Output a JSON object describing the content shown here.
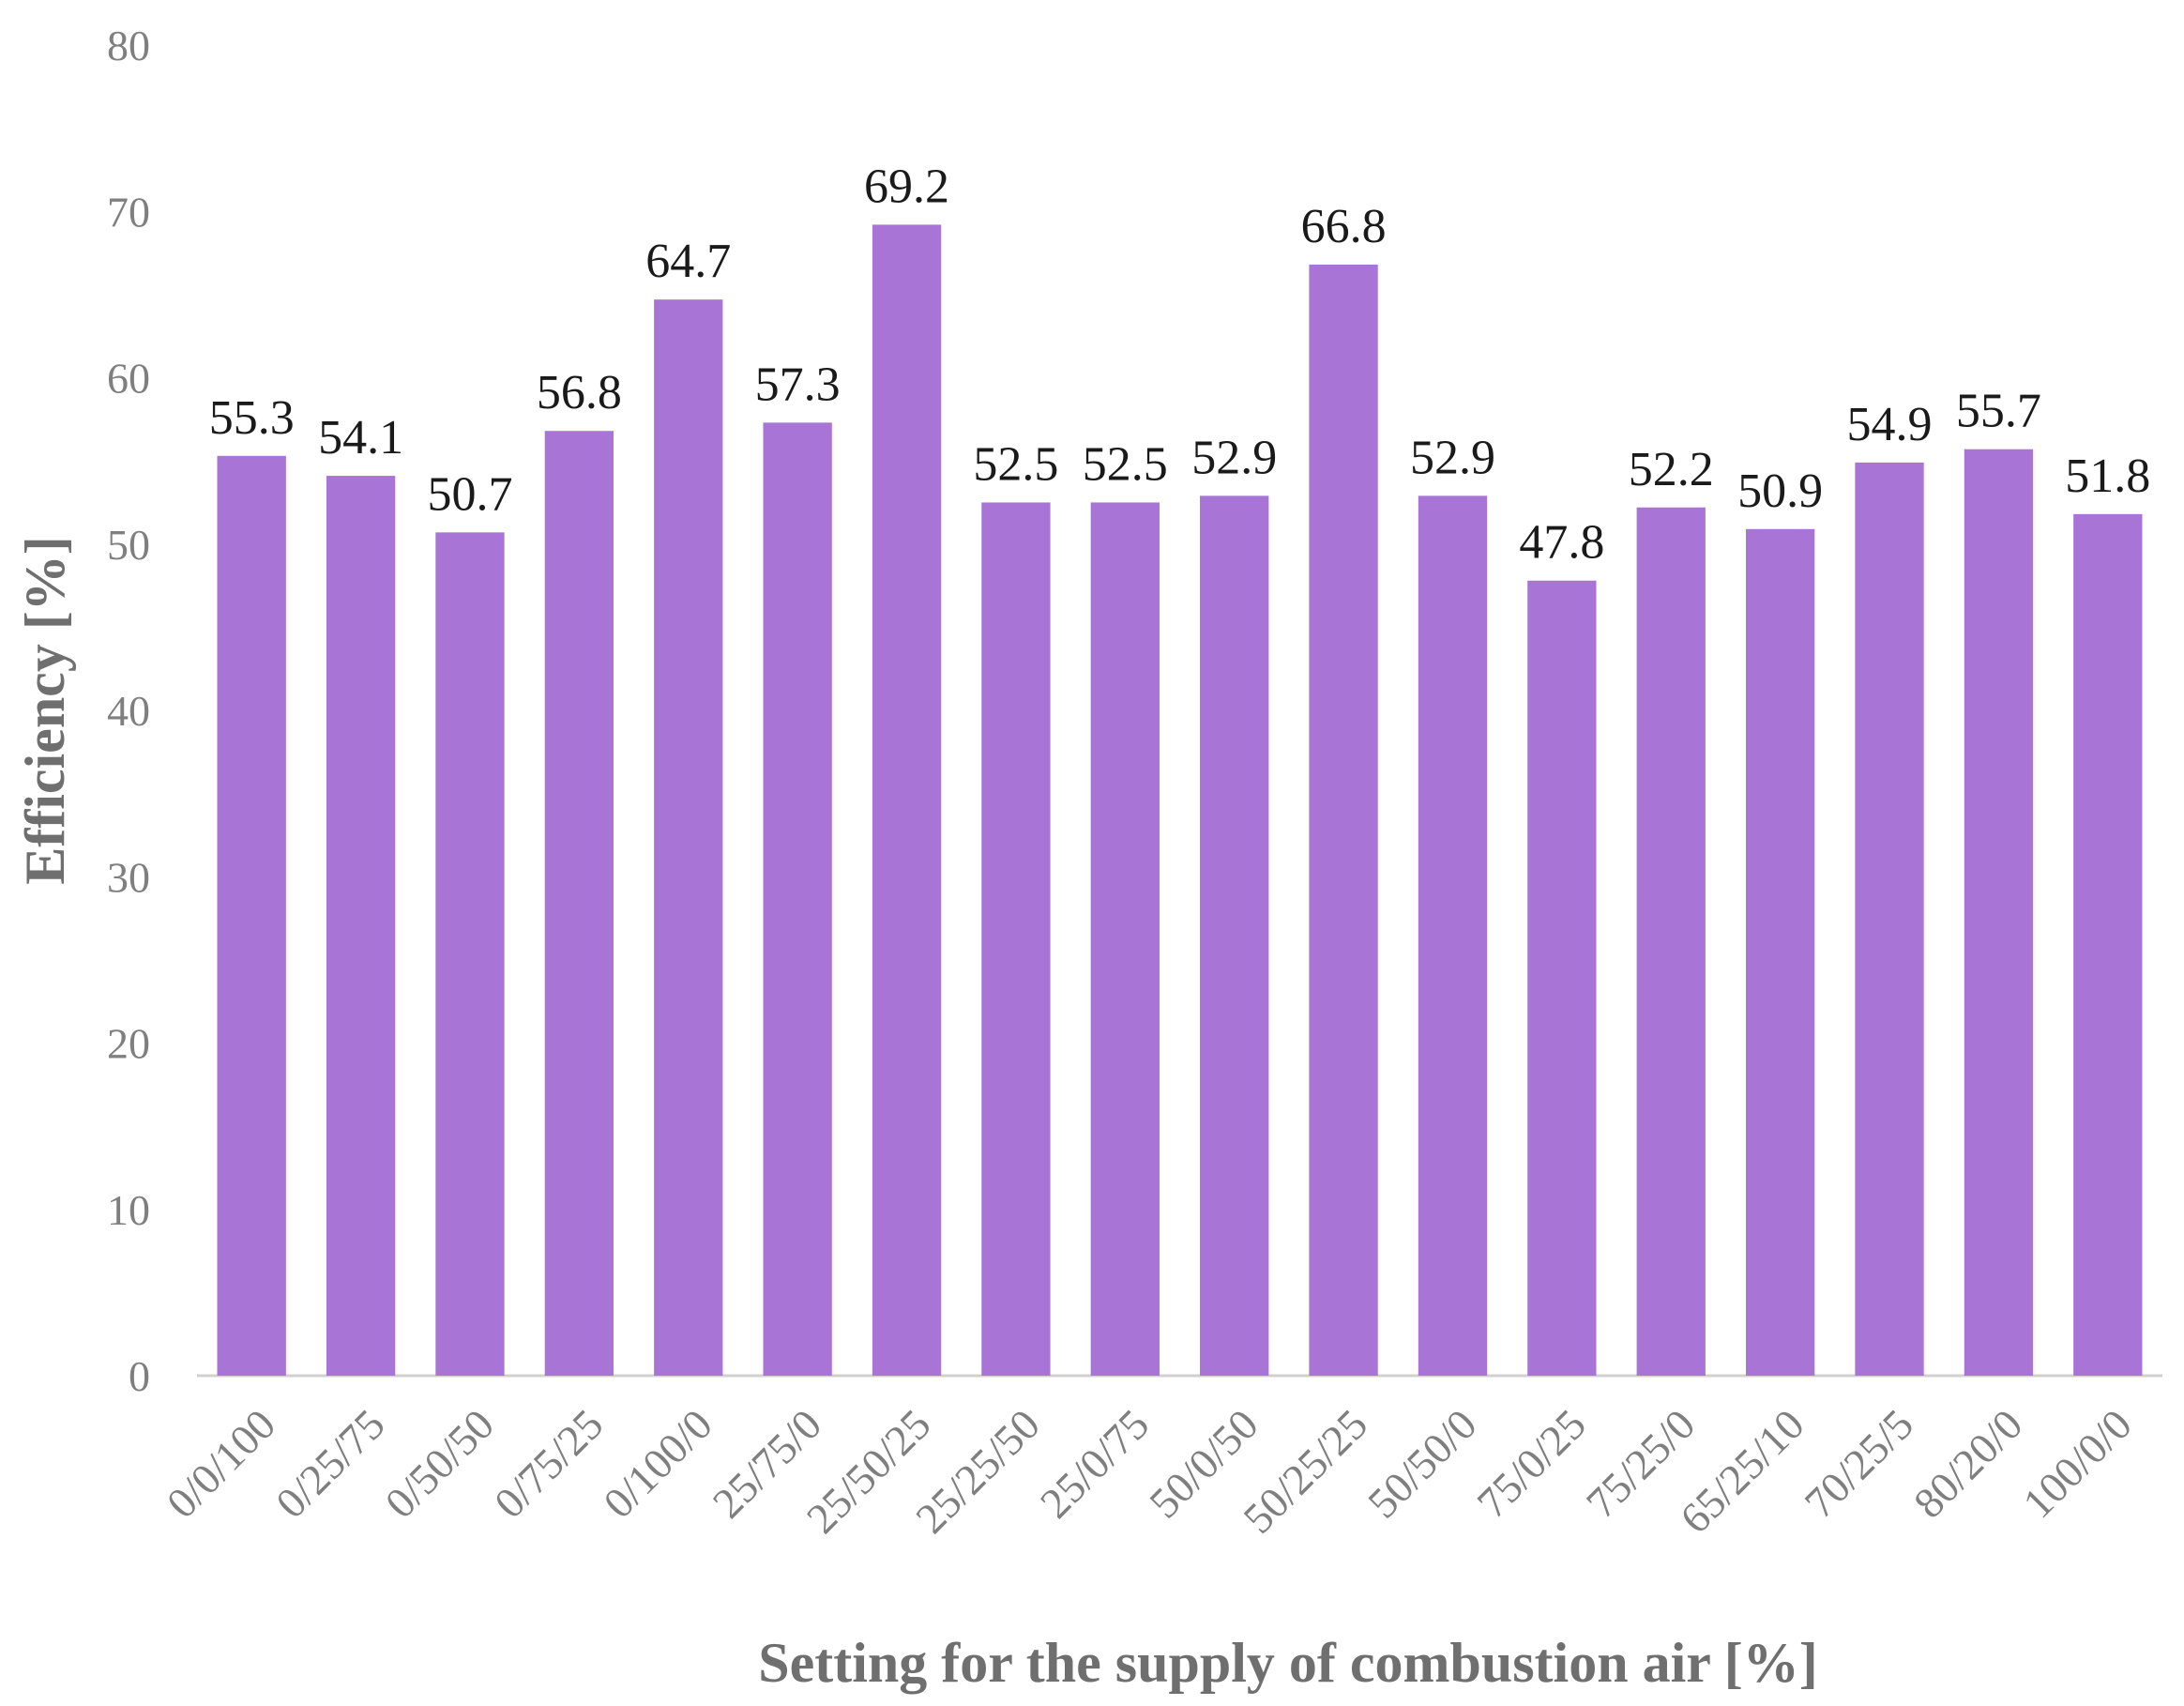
{
  "chart_data": {
    "type": "bar",
    "title": "",
    "xlabel": "Setting for the supply of combustion air [%]",
    "ylabel": "Efficiency [%]",
    "ylim": [
      0,
      80
    ],
    "yticks": [
      0,
      10,
      20,
      30,
      40,
      50,
      60,
      70,
      80
    ],
    "grid": false,
    "bar_color": "#a875d6",
    "categories": [
      "0/0/100",
      "0/25/75",
      "0/50/50",
      "0/75/25",
      "0/100/0",
      "25/75/0",
      "25/50/25",
      "25/25/50",
      "25/0/75",
      "50/0/50",
      "50/25/25",
      "50/50/0",
      "75/0/25",
      "75/25/0",
      "65/25/10",
      "70/25/5",
      "80/20/0",
      "100/0/0"
    ],
    "values": [
      55.3,
      54.1,
      50.7,
      56.8,
      64.7,
      57.3,
      69.2,
      52.5,
      52.5,
      52.9,
      66.8,
      52.9,
      47.8,
      52.2,
      50.9,
      54.9,
      55.7,
      51.8
    ],
    "data_labels": [
      "55.3",
      "54.1",
      "50.7",
      "56.8",
      "64.7",
      "57.3",
      "69.2",
      "52.5",
      "52.5",
      "52.9",
      "66.8",
      "52.9",
      "47.8",
      "52.2",
      "50.9",
      "54.9",
      "55.7",
      "51.8"
    ]
  }
}
